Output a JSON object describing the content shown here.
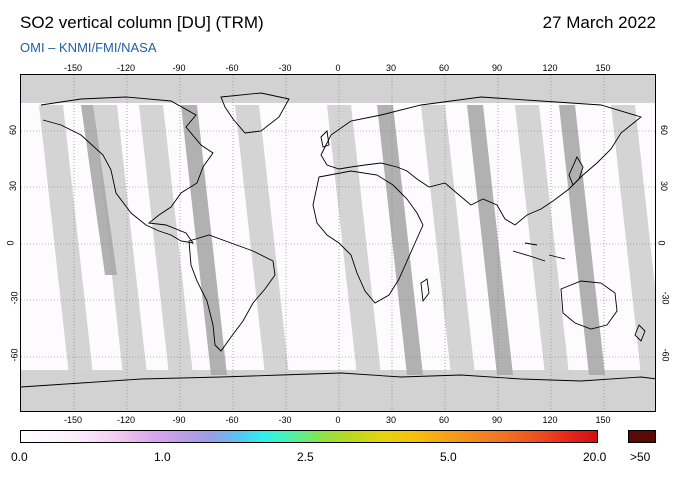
{
  "header": {
    "title": "SO2 vertical column [DU] (TRM)",
    "date": "27 March 2022",
    "credit": "OMI  –  KNMI/FMI/NASA"
  },
  "map": {
    "lon_ticks": [
      "-150",
      "-120",
      "-90",
      "-60",
      "-30",
      "0",
      "30",
      "60",
      "90",
      "120",
      "150"
    ],
    "lat_ticks": [
      "60",
      "30",
      "0",
      "-30",
      "-60"
    ],
    "background_color": "#fdfbfd",
    "swath_gap_color": "#d2d2d2",
    "darker_overlap_color": "#a9a9a9",
    "coastline_color": "#000000"
  },
  "colorbar": {
    "labels": [
      "0.0",
      "1.0",
      "2.5",
      "5.0",
      "20.0"
    ],
    "over_label": ">50",
    "over_color": "#5a0a06",
    "gradient_colors": [
      "#ffffff",
      "#f2c9f2",
      "#9a9ce8",
      "#2ff0ee",
      "#8ae24a",
      "#e5d40c",
      "#f27a22",
      "#d40e12"
    ]
  }
}
